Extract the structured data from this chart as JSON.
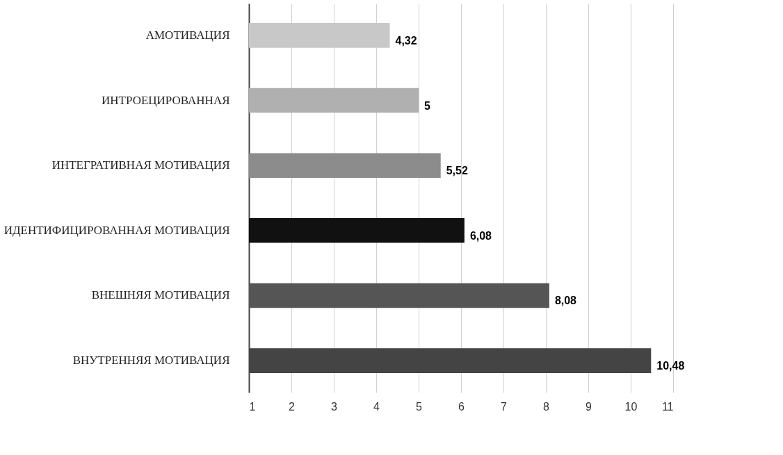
{
  "chart_data": {
    "type": "bar",
    "orientation": "horizontal",
    "categories": [
      "АМОТИВАЦИЯ",
      "ИНТРОЕЦИРОВАННАЯ",
      "ИНТЕГРАТИВНАЯ МОТИВАЦИЯ",
      "ИДЕНТИФИЦИРОВАННАЯ МОТИВАЦИЯ",
      "ВНЕШНЯЯ МОТИВАЦИЯ",
      "ВНУТРЕННЯЯ МОТИВАЦИЯ"
    ],
    "values": [
      4.32,
      5,
      5.52,
      6.08,
      8.08,
      10.48
    ],
    "value_labels": [
      "4,32",
      "5",
      "5,52",
      "6,08",
      "8,08",
      "10,48"
    ],
    "colors": [
      "#c8c8c8",
      "#b0b0b0",
      "#8c8c8c",
      "#111111",
      "#555555",
      "#444444"
    ],
    "xlim": [
      1,
      11
    ],
    "xticks": [
      1,
      2,
      3,
      4,
      5,
      6,
      7,
      8,
      9,
      10,
      11
    ],
    "grid": "x"
  }
}
